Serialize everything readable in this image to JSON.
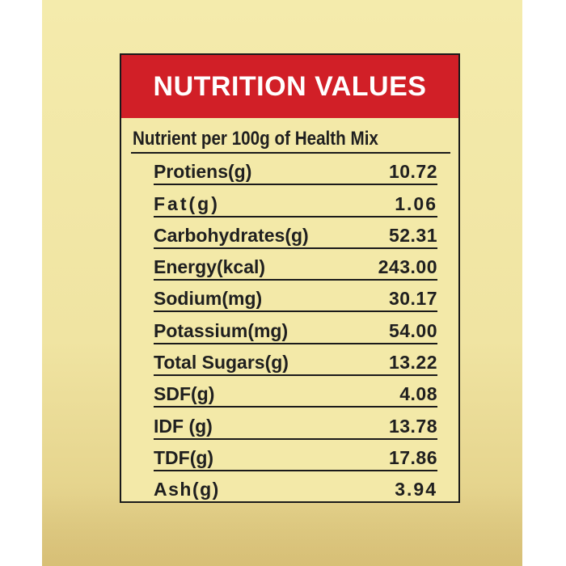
{
  "panel": {
    "title": "NUTRITION VALUES",
    "subtitle": "Nutrient per 100g of Health Mix",
    "accent_color": "#d11f27",
    "background_color": "#f3e9a8"
  },
  "nutrients": [
    {
      "name": "Protiens(g)",
      "value": "10.72"
    },
    {
      "name": "Fat(g)",
      "value": "1.06"
    },
    {
      "name": "Carbohydrates(g)",
      "value": "52.31"
    },
    {
      "name": "Energy(kcal)",
      "value": "243.00"
    },
    {
      "name": "Sodium(mg)",
      "value": "30.17"
    },
    {
      "name": "Potassium(mg)",
      "value": "54.00"
    },
    {
      "name": "Total Sugars(g)",
      "value": "13.22"
    },
    {
      "name": "SDF(g)",
      "value": "4.08"
    },
    {
      "name": "IDF (g)",
      "value": "13.78"
    },
    {
      "name": "TDF(g)",
      "value": "17.86"
    },
    {
      "name": "Ash(g)",
      "value": "3.94"
    }
  ]
}
